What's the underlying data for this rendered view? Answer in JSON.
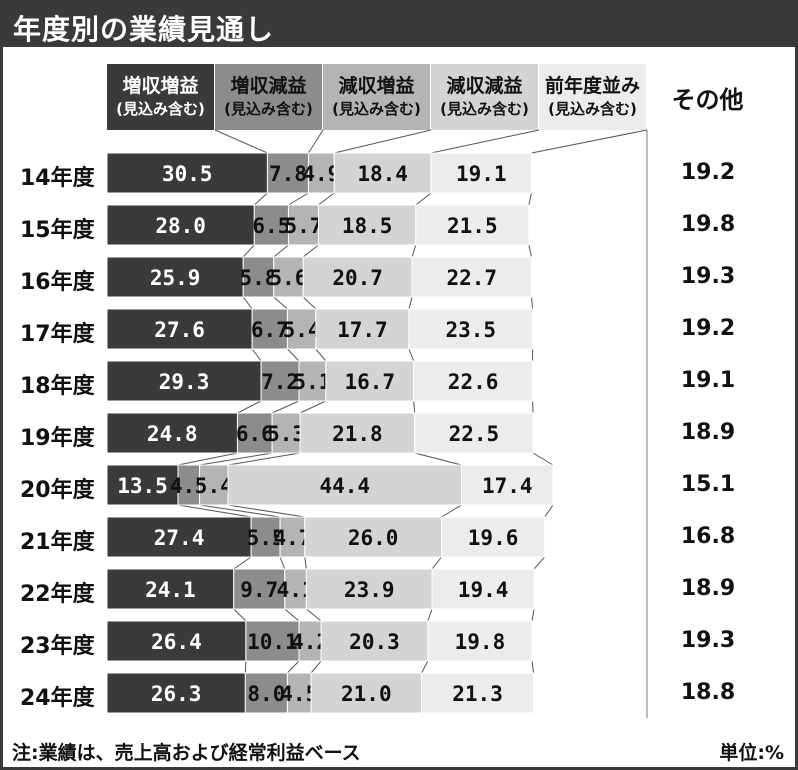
{
  "title": "年度別の業績見通し",
  "headers": [
    {
      "line1": "増収増益",
      "line2": "(見込み含む)",
      "bg": "#3a3a3a",
      "fg": "#ffffff"
    },
    {
      "line1": "増収減益",
      "line2": "(見込み含む)",
      "bg": "#8c8c8c",
      "fg": "#111111"
    },
    {
      "line1": "減収増益",
      "line2": "(見込み含む)",
      "bg": "#b4b4b4",
      "fg": "#111111"
    },
    {
      "line1": "減収減益",
      "line2": "(見込み含む)",
      "bg": "#d4d4d4",
      "fg": "#111111"
    },
    {
      "line1": "前年度並み",
      "line2": "(見込み含む)",
      "bg": "#ececec",
      "fg": "#111111"
    }
  ],
  "other_header": "その他",
  "footer": {
    "note": "注:業績は、売上高および経常利益ベース",
    "unit": "単位:%"
  },
  "chart_data": {
    "type": "bar",
    "stacked": true,
    "orientation": "horizontal",
    "categories": [
      "14年度",
      "15年度",
      "16年度",
      "17年度",
      "18年度",
      "19年度",
      "20年度",
      "21年度",
      "22年度",
      "23年度",
      "24年度"
    ],
    "series": [
      {
        "name": "増収増益(見込み含む)",
        "color": "#3a3a3a",
        "label_color": "#ffffff",
        "values": [
          30.5,
          28.0,
          25.9,
          27.6,
          29.3,
          24.8,
          13.5,
          27.4,
          24.1,
          26.4,
          26.3
        ],
        "labels": [
          "30.5",
          "28.0",
          "25.9",
          "27.6",
          "29.3",
          "24.8",
          "13.5",
          "27.4",
          "24.1",
          "26.4",
          "26.3"
        ]
      },
      {
        "name": "増収減益(見込み含む)",
        "color": "#8c8c8c",
        "label_color": "#111111",
        "values": [
          7.8,
          6.5,
          5.8,
          6.7,
          7.2,
          6.6,
          4.1,
          5.5,
          9.7,
          10.1,
          8.0
        ],
        "labels": [
          "7.8",
          "6.5",
          "5.8",
          "6.7",
          "7.2",
          "6.6",
          "4.1",
          "5.5",
          "9.7",
          "10.1",
          "8.0"
        ]
      },
      {
        "name": "減収増益(見込み含む)",
        "color": "#b4b4b4",
        "label_color": "#111111",
        "values": [
          4.9,
          5.7,
          5.6,
          5.4,
          5.1,
          5.3,
          5.4,
          4.7,
          4.1,
          4.2,
          4.5
        ],
        "labels": [
          "4.9",
          "5.7",
          "5.6",
          "5.4",
          "5.1",
          "5.3",
          "5.4",
          "4.7",
          "4.1",
          "4.2",
          "4.5"
        ]
      },
      {
        "name": "減収減益(見込み含む)",
        "color": "#d4d4d4",
        "label_color": "#111111",
        "values": [
          18.4,
          18.5,
          20.7,
          17.7,
          16.7,
          21.8,
          44.4,
          26.0,
          23.9,
          20.3,
          21.0
        ],
        "labels": [
          "18.4",
          "18.5",
          "20.7",
          "17.7",
          "16.7",
          "21.8",
          "44.4",
          "26.0",
          "23.9",
          "20.3",
          "21.0"
        ]
      },
      {
        "name": "前年度並み(見込み含む)",
        "color": "#ececec",
        "label_color": "#111111",
        "values": [
          19.1,
          21.5,
          22.7,
          23.5,
          22.6,
          22.5,
          17.4,
          19.6,
          19.4,
          19.8,
          21.3
        ],
        "labels": [
          "19.1",
          "21.5",
          "22.7",
          "23.5",
          "22.6",
          "22.5",
          "17.4",
          "19.6",
          "19.4",
          "19.8",
          "21.3"
        ]
      },
      {
        "name": "その他",
        "values": [
          19.2,
          19.8,
          19.3,
          19.2,
          19.1,
          18.9,
          15.1,
          16.8,
          18.9,
          19.3,
          18.8
        ],
        "labels": [
          "19.2",
          "19.8",
          "19.3",
          "19.2",
          "19.1",
          "18.9",
          "15.1",
          "16.8",
          "18.9",
          "19.3",
          "18.8"
        ]
      }
    ]
  }
}
